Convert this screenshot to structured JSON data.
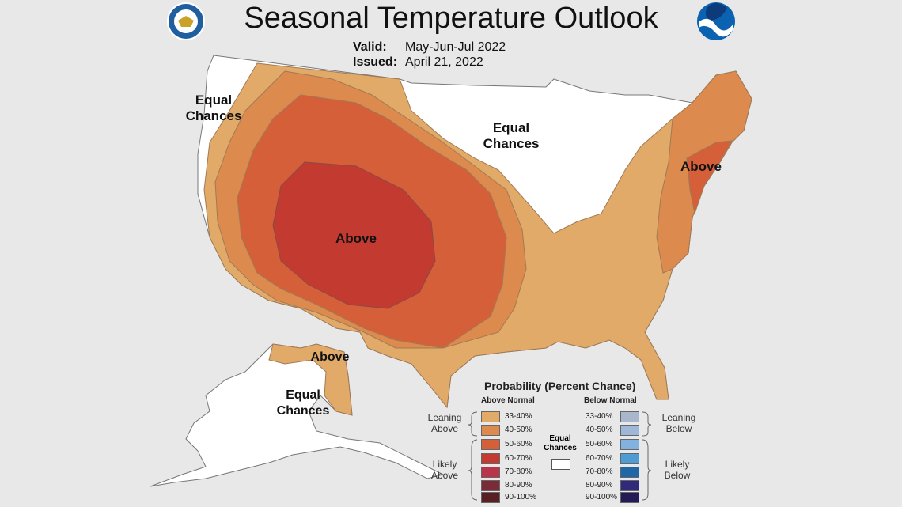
{
  "header": {
    "title": "Seasonal Temperature Outlook",
    "valid_label": "Valid:",
    "valid_value": "May-Jun-Jul 2022",
    "issued_label": "Issued:",
    "issued_value": "April 21, 2022"
  },
  "map_labels": {
    "west_equal": "Equal\nChances",
    "center_equal": "Equal\nChances",
    "southwest_above": "Above",
    "northeast_above": "Above",
    "alaska_above": "Above",
    "alaska_equal": "Equal\nChances"
  },
  "legend": {
    "title": "Probability (Percent Chance)",
    "above_header": "Above Normal",
    "below_header": "Below Normal",
    "leaning_above": "Leaning\nAbove",
    "likely_above": "Likely\nAbove",
    "leaning_below": "Leaning\nBelow",
    "likely_below": "Likely\nBelow",
    "equal_chances": "Equal\nChances",
    "above": [
      {
        "range": "33-40%",
        "color": "#e2aa68"
      },
      {
        "range": "40-50%",
        "color": "#dc8a4e"
      },
      {
        "range": "50-60%",
        "color": "#d45f39"
      },
      {
        "range": "60-70%",
        "color": "#c33a30"
      },
      {
        "range": "70-80%",
        "color": "#b8354b"
      },
      {
        "range": "80-90%",
        "color": "#7a2b35"
      },
      {
        "range": "90-100%",
        "color": "#5a1f22"
      }
    ],
    "below": [
      {
        "range": "33-40%",
        "color": "#a9b7cc"
      },
      {
        "range": "40-50%",
        "color": "#9fb7d8"
      },
      {
        "range": "50-60%",
        "color": "#82b2e0"
      },
      {
        "range": "60-70%",
        "color": "#4f9bd4"
      },
      {
        "range": "70-80%",
        "color": "#1f67a5"
      },
      {
        "range": "80-90%",
        "color": "#302a7a"
      },
      {
        "range": "90-100%",
        "color": "#241a55"
      }
    ]
  }
}
